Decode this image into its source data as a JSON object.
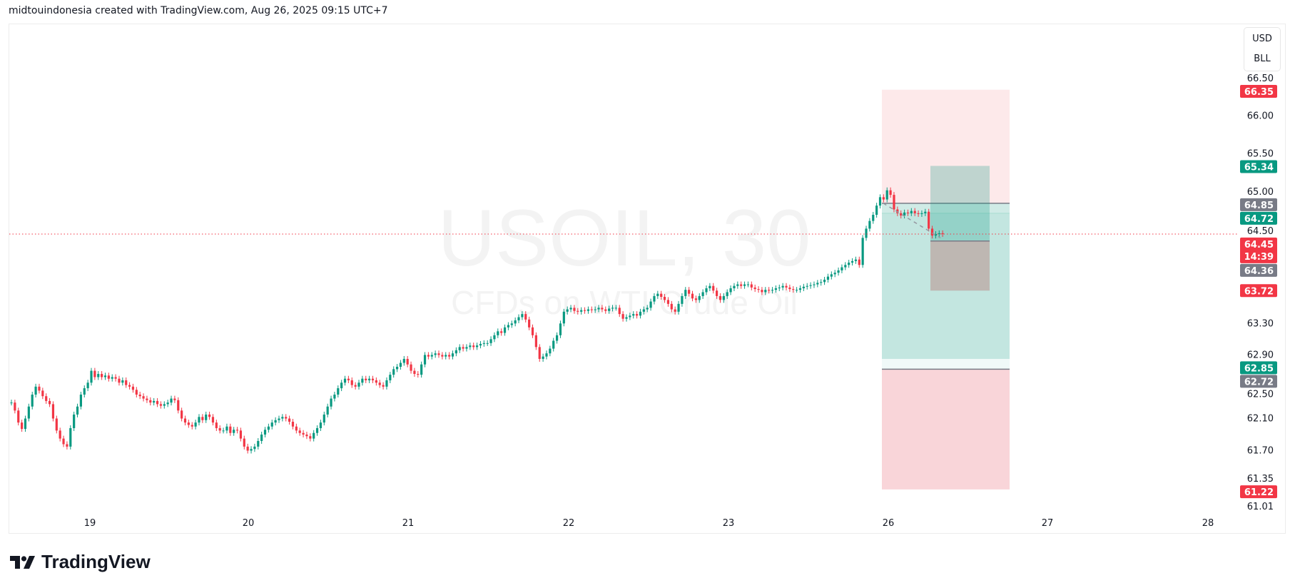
{
  "header": {
    "credit": "midtouindonesia created with TradingView.com, Aug 26, 2025 09:15 UTC+7"
  },
  "watermark": {
    "symbol": "USOIL, 30",
    "description": "CFDs on WTI Crude Oil"
  },
  "currency_box": {
    "currency": "USD",
    "unit": "BLL"
  },
  "logo": {
    "text": "TradingView"
  },
  "colors": {
    "up": "#089981",
    "down": "#f23645",
    "neutral": "#787b86",
    "last_price_line": "#f23645"
  },
  "chart_data": {
    "type": "candlestick",
    "symbol": "USOIL",
    "interval": "30",
    "y_scale": "log",
    "ylim": [
      61.01,
      66.5
    ],
    "grid": false,
    "x_tick_labels": [
      "19",
      "20",
      "21",
      "22",
      "23",
      "26",
      "27",
      "28"
    ],
    "y_tick_labels": [
      "66.50",
      "66.00",
      "65.50",
      "65.00",
      "64.50",
      "63.30",
      "62.90",
      "62.50",
      "62.10",
      "61.70",
      "61.35",
      "61.01"
    ],
    "closes": [
      62.3,
      62.2,
      62.05,
      61.97,
      62.1,
      62.25,
      62.4,
      62.5,
      62.45,
      62.38,
      62.32,
      62.28,
      62.1,
      61.95,
      61.85,
      61.78,
      61.75,
      61.98,
      62.15,
      62.25,
      62.4,
      62.48,
      62.55,
      62.7,
      62.62,
      62.66,
      62.62,
      62.64,
      62.6,
      62.62,
      62.6,
      62.55,
      62.58,
      62.52,
      62.5,
      62.46,
      62.4,
      62.38,
      62.35,
      62.33,
      62.3,
      62.32,
      62.28,
      62.26,
      62.28,
      62.3,
      62.35,
      62.33,
      62.2,
      62.1,
      62.05,
      62.02,
      62.0,
      62.05,
      62.12,
      62.08,
      62.15,
      62.12,
      62.05,
      61.98,
      61.95,
      61.95,
      62.0,
      61.92,
      61.96,
      61.95,
      61.85,
      61.75,
      61.7,
      61.72,
      61.75,
      61.82,
      61.9,
      61.96,
      62.0,
      62.05,
      62.08,
      62.1,
      62.12,
      62.1,
      62.06,
      62.0,
      61.95,
      61.92,
      61.9,
      61.88,
      61.85,
      61.92,
      61.98,
      62.05,
      62.15,
      62.25,
      62.35,
      62.4,
      62.48,
      62.55,
      62.6,
      62.58,
      62.52,
      62.5,
      62.55,
      62.6,
      62.58,
      62.6,
      62.58,
      62.55,
      62.52,
      62.5,
      62.58,
      62.65,
      62.72,
      62.75,
      62.8,
      62.85,
      62.78,
      62.7,
      62.66,
      62.65,
      62.78,
      62.9,
      62.88,
      62.9,
      62.92,
      62.9,
      62.88,
      62.9,
      62.88,
      62.92,
      62.96,
      63.0,
      62.98,
      63.0,
      63.02,
      63.0,
      63.02,
      63.04,
      63.05,
      63.05,
      63.1,
      63.15,
      63.2,
      63.18,
      63.25,
      63.28,
      63.3,
      63.34,
      63.38,
      63.42,
      63.35,
      63.25,
      63.15,
      63.0,
      62.85,
      62.88,
      62.92,
      62.98,
      63.08,
      63.15,
      63.3,
      63.45,
      63.48,
      63.5,
      63.46,
      63.45,
      63.47,
      63.46,
      63.48,
      63.47,
      63.48,
      63.5,
      63.48,
      63.46,
      63.49,
      63.5,
      63.5,
      63.42,
      63.36,
      63.38,
      63.4,
      63.42,
      63.4,
      63.45,
      63.48,
      63.5,
      63.58,
      63.65,
      63.68,
      63.64,
      63.6,
      63.55,
      63.48,
      63.45,
      63.55,
      63.65,
      63.73,
      63.68,
      63.62,
      63.6,
      63.65,
      63.7,
      63.75,
      63.78,
      63.72,
      63.65,
      63.6,
      63.65,
      63.7,
      63.75,
      63.78,
      63.8,
      63.78,
      63.8,
      63.8,
      63.76,
      63.74,
      63.73,
      63.7,
      63.73,
      63.72,
      63.73,
      63.75,
      63.76,
      63.78,
      63.76,
      63.74,
      63.73,
      63.73,
      63.75,
      63.77,
      63.78,
      63.79,
      63.8,
      63.82,
      63.83,
      63.86,
      63.9,
      63.93,
      63.95,
      63.98,
      64.02,
      64.05,
      64.08,
      64.1,
      64.12,
      64.05,
      64.4,
      64.52,
      64.62,
      64.7,
      64.82,
      64.93,
      64.9,
      65.02,
      64.96,
      64.77,
      64.72,
      64.69,
      64.73,
      64.72,
      64.75,
      64.72,
      64.71,
      64.72,
      64.74,
      64.52,
      64.43,
      64.45,
      64.46,
      64.45
    ],
    "last_price": {
      "value": "64.45",
      "countdown": "14:39"
    },
    "price_labels": [
      {
        "value": "66.35",
        "color": "#f23645"
      },
      {
        "value": "65.34",
        "color": "#089981"
      },
      {
        "value": "64.85",
        "color": "#787b86"
      },
      {
        "value": "64.72",
        "color": "#089981"
      },
      {
        "value": "64.36",
        "color": "#787b86"
      },
      {
        "value": "63.72",
        "color": "#f23645"
      },
      {
        "value": "62.85",
        "color": "#089981"
      },
      {
        "value": "62.72",
        "color": "#787b86"
      },
      {
        "value": "61.22",
        "color": "#f23645"
      }
    ],
    "position_tools": [
      {
        "kind": "short",
        "entry": 64.85,
        "stop": 66.35,
        "target": 62.85
      },
      {
        "kind": "long",
        "entry": 62.72,
        "target": 64.72,
        "stop": 61.22
      },
      {
        "kind": "long",
        "entry": 64.36,
        "target": 65.34,
        "stop": 63.72
      }
    ]
  }
}
